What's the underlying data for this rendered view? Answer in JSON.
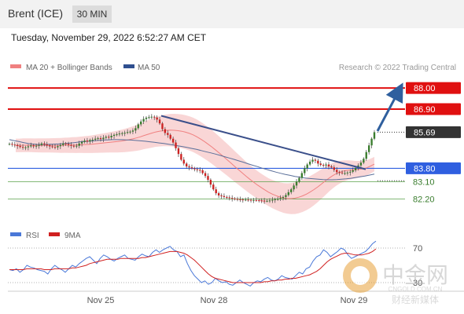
{
  "header": {
    "title": "Brent (ICE)",
    "timeframe": "30 MIN"
  },
  "datetime": "Tuesday, November 29, 2022 6:52:27 AM CET",
  "credit": "Research © 2022 Trading Central",
  "watermark": {
    "text_cn": "中金网",
    "text_url": "CNGOLD.COM.CN",
    "text_sub": "财经新媒体"
  },
  "colors": {
    "resistance": "#e01010",
    "support_main": "#2f5fe0",
    "support_minor": "#5aa04a",
    "price_label": "#333333",
    "arrow": "#2f5f9e",
    "trendline": "#3a4f8a",
    "bollinger_fill": "#f7c8c8",
    "ma20": "#f08080",
    "ma50": "#5a6f9a",
    "rsi": "#4a78d8",
    "rsi_ma": "#d02020",
    "candle_up": "#3a7d2e",
    "candle_down": "#cc2222"
  },
  "chart_data": [
    {
      "type": "candlestick",
      "legend": [
        {
          "name": "MA 20 + Bollinger Bands",
          "color": "#f08080"
        },
        {
          "name": "MA 50",
          "color": "#2f4f8f"
        }
      ],
      "x_ticks": [
        "Nov 25",
        "Nov 28",
        "Nov 29"
      ],
      "y_range": [
        81.6,
        88.5
      ],
      "levels": [
        {
          "label": "88.00",
          "value": 88.0,
          "kind": "resistance"
        },
        {
          "label": "86.90",
          "value": 86.9,
          "kind": "resistance"
        },
        {
          "label": "85.69",
          "value": 85.69,
          "kind": "last"
        },
        {
          "label": "83.80",
          "value": 83.8,
          "kind": "pivot"
        },
        {
          "label": "83.10",
          "value": 83.1,
          "kind": "support"
        },
        {
          "label": "82.20",
          "value": 82.2,
          "kind": "support"
        }
      ],
      "close": [
        85.08,
        85.04,
        85.02,
        84.97,
        84.92,
        84.88,
        84.9,
        84.95,
        85.0,
        84.95,
        84.98,
        85.02,
        85.1,
        85.05,
        85.0,
        84.95,
        84.92,
        84.9,
        84.96,
        85.02,
        85.1,
        85.08,
        85.03,
        84.98,
        84.95,
        84.98,
        85.1,
        85.18,
        85.25,
        85.2,
        85.28,
        85.3,
        85.35,
        85.38,
        85.33,
        85.4,
        85.45,
        85.42,
        85.5,
        85.55,
        85.58,
        85.62,
        85.64,
        85.66,
        85.7,
        85.72,
        85.78,
        85.9,
        86.1,
        86.25,
        86.38,
        86.45,
        86.48,
        86.5,
        86.46,
        86.35,
        86.15,
        85.85,
        85.65,
        85.55,
        85.35,
        85.15,
        84.85,
        84.55,
        84.25,
        84.05,
        83.9,
        83.85,
        83.8,
        83.75,
        83.72,
        83.7,
        83.55,
        83.4,
        83.2,
        82.95,
        82.7,
        82.5,
        82.38,
        82.35,
        82.3,
        82.28,
        82.25,
        82.22,
        82.2,
        82.18,
        82.17,
        82.16,
        82.16,
        82.15,
        82.14,
        82.14,
        82.13,
        82.12,
        82.11,
        82.1,
        82.1,
        82.12,
        82.15,
        82.18,
        82.2,
        82.25,
        82.3,
        82.4,
        82.55,
        82.7,
        82.9,
        83.1,
        83.3,
        83.55,
        83.8,
        84.0,
        84.15,
        84.25,
        84.2,
        84.05,
        83.98,
        83.95,
        84.0,
        83.9,
        83.85,
        83.72,
        83.6,
        83.58,
        83.55,
        83.55,
        83.58,
        83.62,
        83.7,
        83.82,
        83.95,
        84.1,
        84.3,
        84.65,
        85.0,
        85.35,
        85.69
      ],
      "ma20": [
        85.0,
        85.0,
        85.01,
        85.01,
        85.01,
        85.0,
        85.0,
        85.0,
        85.0,
        85.0,
        85.0,
        85.0,
        85.0,
        85.01,
        85.01,
        85.02,
        85.02,
        85.03,
        85.04,
        85.05,
        85.06,
        85.08,
        85.1,
        85.12,
        85.14,
        85.16,
        85.18,
        85.2,
        85.23,
        85.26,
        85.3,
        85.34,
        85.39,
        85.45,
        85.52,
        85.58,
        85.64,
        85.7,
        85.74,
        85.77,
        85.79,
        85.8,
        85.79,
        85.77,
        85.74,
        85.69,
        85.63,
        85.55,
        85.45,
        85.33,
        85.2,
        85.06,
        84.91,
        84.75,
        84.59,
        84.42,
        84.25,
        84.08,
        83.9,
        83.73,
        83.56,
        83.39,
        83.23,
        83.08,
        82.93,
        82.8,
        82.67,
        82.55,
        82.45,
        82.37,
        82.3,
        82.25,
        82.22,
        82.22,
        82.24,
        82.29,
        82.36,
        82.45,
        82.56,
        82.69,
        82.83,
        82.98,
        83.14,
        83.29,
        83.42,
        83.53,
        83.61,
        83.67,
        83.7,
        83.72,
        83.73,
        83.75,
        83.78,
        83.83,
        83.92,
        84.02
      ],
      "ma50": [
        85.3,
        85.25,
        85.2,
        85.15,
        85.1,
        85.07,
        85.05,
        85.05,
        85.05,
        85.06,
        85.07,
        85.08,
        85.1,
        85.12,
        85.15,
        85.18,
        85.2,
        85.22,
        85.24,
        85.26,
        85.28,
        85.29,
        85.3,
        85.3,
        85.3,
        85.29,
        85.28,
        85.26,
        85.24,
        85.22,
        85.19,
        85.16,
        85.13,
        85.1,
        85.06,
        85.02,
        84.98,
        84.94,
        84.89,
        84.84,
        84.79,
        84.73,
        84.67,
        84.61,
        84.55,
        84.48,
        84.41,
        84.34,
        84.27,
        84.19,
        84.12,
        84.04,
        83.96,
        83.89,
        83.81,
        83.74,
        83.67,
        83.6,
        83.54,
        83.48,
        83.43,
        83.38,
        83.34,
        83.3,
        83.27,
        83.25,
        83.23,
        83.21,
        83.2,
        83.2,
        83.21,
        83.23,
        83.25,
        83.28,
        83.32,
        83.36,
        83.4,
        83.45,
        83.5
      ]
    },
    {
      "type": "line",
      "legend": [
        {
          "name": "RSI",
          "color": "#4a78d8"
        },
        {
          "name": "9MA",
          "color": "#d02020"
        }
      ],
      "y_ticks": [
        30,
        70
      ],
      "y_range": [
        20,
        80
      ],
      "rsi": [
        45,
        44,
        46,
        42,
        45,
        50,
        48,
        47,
        45,
        44,
        43,
        40,
        46,
        50,
        47,
        45,
        42,
        46,
        50,
        48,
        52,
        55,
        58,
        60,
        56,
        52,
        58,
        62,
        60,
        57,
        55,
        58,
        60,
        62,
        58,
        57,
        56,
        60,
        63,
        61,
        60,
        65,
        68,
        65,
        68,
        70,
        72,
        68,
        66,
        60,
        62,
        52,
        44,
        38,
        34,
        30,
        32,
        28,
        30,
        35,
        32,
        30,
        31,
        28,
        27,
        30,
        33,
        30,
        28,
        26,
        30,
        32,
        31,
        34,
        36,
        33,
        32,
        34,
        38,
        36,
        35,
        34,
        38,
        42,
        40,
        46,
        48,
        55,
        60,
        62,
        68,
        65,
        60,
        63,
        66,
        70,
        68,
        62,
        58,
        60,
        62,
        64,
        66,
        70,
        75,
        78
      ],
      "rsi_9ma": [
        45,
        45,
        45,
        45,
        45,
        46,
        46,
        46,
        46,
        46,
        45,
        45,
        45,
        46,
        46,
        46,
        46,
        46,
        47,
        47,
        48,
        49,
        50,
        52,
        53,
        54,
        55,
        56,
        57,
        57,
        57,
        57,
        58,
        58,
        58,
        58,
        58,
        58,
        59,
        59,
        60,
        61,
        62,
        63,
        64,
        65,
        66,
        66,
        66,
        65,
        64,
        62,
        59,
        56,
        52,
        48,
        44,
        40,
        37,
        35,
        34,
        33,
        32,
        31,
        30,
        30,
        30,
        30,
        30,
        30,
        30,
        30,
        30,
        31,
        31,
        32,
        32,
        33,
        33,
        34,
        34,
        35,
        35,
        36,
        37,
        38,
        39,
        41,
        43,
        46,
        50,
        54,
        57,
        59,
        61,
        63,
        64,
        64,
        63,
        62,
        62,
        62,
        63,
        64,
        66,
        69
      ]
    }
  ]
}
